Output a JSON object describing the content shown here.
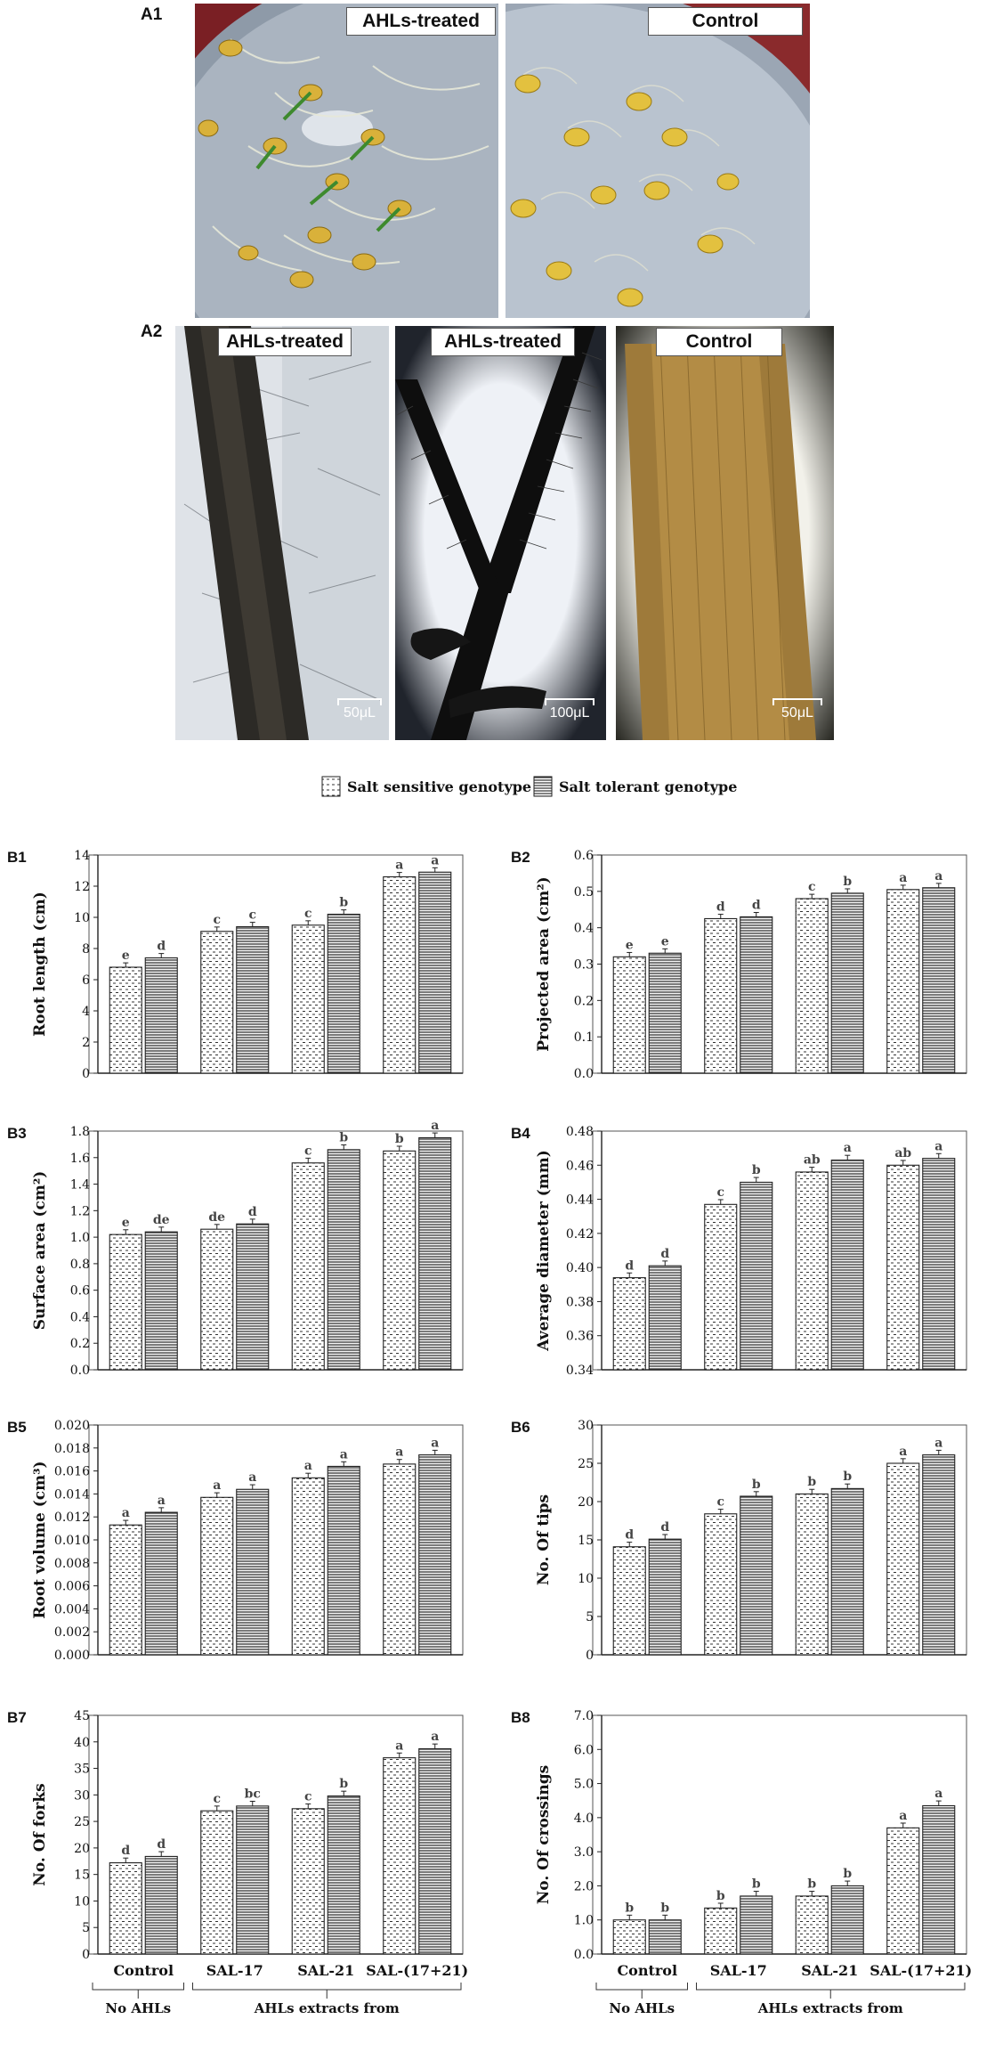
{
  "panelA": {
    "a1_label": "A1",
    "a2_label": "A2",
    "photo_a1_left_tag": "AHLs-treated",
    "photo_a1_right_tag": "Control",
    "photo_a2_left_tag": "AHLs-treated",
    "photo_a2_mid_tag": "AHLs-treated",
    "photo_a2_right_tag": "Control",
    "scale_left": "50μL",
    "scale_mid": "100μL",
    "scale_right": "50μL"
  },
  "legend": {
    "sensitive": "Salt sensitive genotype",
    "tolerant": "Salt tolerant genotype"
  },
  "xaxis": {
    "groups": [
      "Control",
      "SAL-17",
      "SAL-21",
      "SAL-(17+21)"
    ],
    "bracket_left": "No AHLs",
    "bracket_right": "AHLs extracts from"
  },
  "chart_data": [
    {
      "id": "B1",
      "type": "bar",
      "ylabel": "Root length (cm)",
      "ylim": [
        0,
        14
      ],
      "ticks": [
        "0",
        "2",
        "4",
        "6",
        "8",
        "10",
        "12",
        "14"
      ],
      "categories": [
        "Control",
        "SAL-17",
        "SAL-21",
        "SAL-(17+21)"
      ],
      "series": [
        {
          "name": "Salt sensitive genotype",
          "values": [
            6.8,
            9.1,
            9.5,
            12.6
          ],
          "letters": [
            "e",
            "c",
            "c",
            "a"
          ]
        },
        {
          "name": "Salt tolerant genotype",
          "values": [
            7.4,
            9.4,
            10.2,
            12.9
          ],
          "letters": [
            "d",
            "c",
            "b",
            "a"
          ]
        }
      ]
    },
    {
      "id": "B2",
      "type": "bar",
      "ylabel": "Projected area (cm²)",
      "ylim": [
        0,
        0.6
      ],
      "ticks": [
        "0.0",
        "0.1",
        "0.2",
        "0.3",
        "0.4",
        "0.5",
        "0.6"
      ],
      "categories": [
        "Control",
        "SAL-17",
        "SAL-21",
        "SAL-(17+21)"
      ],
      "series": [
        {
          "name": "Salt sensitive genotype",
          "values": [
            0.32,
            0.425,
            0.48,
            0.505
          ],
          "letters": [
            "e",
            "d",
            "c",
            "a"
          ]
        },
        {
          "name": "Salt tolerant genotype",
          "values": [
            0.33,
            0.43,
            0.495,
            0.51
          ],
          "letters": [
            "e",
            "d",
            "b",
            "a"
          ]
        }
      ]
    },
    {
      "id": "B3",
      "type": "bar",
      "ylabel": "Surface area (cm²)",
      "ylim": [
        0,
        1.8
      ],
      "ticks": [
        "0.0",
        "0.2",
        "0.4",
        "0.6",
        "0.8",
        "1.0",
        "1.2",
        "1.4",
        "1.6",
        "1.8"
      ],
      "categories": [
        "Control",
        "SAL-17",
        "SAL-21",
        "SAL-(17+21)"
      ],
      "series": [
        {
          "name": "Salt sensitive genotype",
          "values": [
            1.02,
            1.06,
            1.56,
            1.65
          ],
          "letters": [
            "e",
            "de",
            "c",
            "b"
          ]
        },
        {
          "name": "Salt tolerant genotype",
          "values": [
            1.04,
            1.1,
            1.66,
            1.75
          ],
          "letters": [
            "de",
            "d",
            "b",
            "a"
          ]
        }
      ]
    },
    {
      "id": "B4",
      "type": "bar",
      "ylabel": "Average diameter (mm)",
      "ylim": [
        0.34,
        0.48
      ],
      "ticks": [
        "0.34",
        "0.36",
        "0.38",
        "0.40",
        "0.42",
        "0.44",
        "0.46",
        "0.48"
      ],
      "categories": [
        "Control",
        "SAL-17",
        "SAL-21",
        "SAL-(17+21)"
      ],
      "series": [
        {
          "name": "Salt sensitive genotype",
          "values": [
            0.394,
            0.437,
            0.456,
            0.46
          ],
          "letters": [
            "d",
            "c",
            "ab",
            "ab"
          ]
        },
        {
          "name": "Salt tolerant genotype",
          "values": [
            0.401,
            0.45,
            0.463,
            0.464
          ],
          "letters": [
            "d",
            "b",
            "a",
            "a"
          ]
        }
      ]
    },
    {
      "id": "B5",
      "type": "bar",
      "ylabel": "Root volume (cm³)",
      "ylim": [
        0,
        0.02
      ],
      "ticks": [
        "0.000",
        "0.002",
        "0.004",
        "0.006",
        "0.008",
        "0.010",
        "0.012",
        "0.014",
        "0.016",
        "0.018",
        "0.020"
      ],
      "categories": [
        "Control",
        "SAL-17",
        "SAL-21",
        "SAL-(17+21)"
      ],
      "series": [
        {
          "name": "Salt sensitive genotype",
          "values": [
            0.0113,
            0.0137,
            0.0154,
            0.0166
          ],
          "letters": [
            "a",
            "a",
            "a",
            "a"
          ]
        },
        {
          "name": "Salt tolerant genotype",
          "values": [
            0.0124,
            0.0144,
            0.0164,
            0.0174
          ],
          "letters": [
            "a",
            "a",
            "a",
            "a"
          ]
        }
      ]
    },
    {
      "id": "B6",
      "type": "bar",
      "ylabel": "No. Of tips",
      "ylim": [
        0,
        30
      ],
      "ticks": [
        "0",
        "5",
        "10",
        "15",
        "20",
        "25",
        "30"
      ],
      "categories": [
        "Control",
        "SAL-17",
        "SAL-21",
        "SAL-(17+21)"
      ],
      "series": [
        {
          "name": "Salt sensitive genotype",
          "values": [
            14.1,
            18.4,
            21.0,
            25.0
          ],
          "letters": [
            "d",
            "c",
            "b",
            "a"
          ]
        },
        {
          "name": "Salt tolerant genotype",
          "values": [
            15.1,
            20.7,
            21.7,
            26.1
          ],
          "letters": [
            "d",
            "b",
            "b",
            "a"
          ]
        }
      ]
    },
    {
      "id": "B7",
      "type": "bar",
      "ylabel": "No. Of forks",
      "ylim": [
        0,
        45
      ],
      "ticks": [
        "0",
        "5",
        "10",
        "15",
        "20",
        "25",
        "30",
        "35",
        "40",
        "45"
      ],
      "categories": [
        "Control",
        "SAL-17",
        "SAL-21",
        "SAL-(17+21)"
      ],
      "series": [
        {
          "name": "Salt sensitive genotype",
          "values": [
            17.2,
            27.0,
            27.4,
            37.0
          ],
          "letters": [
            "d",
            "c",
            "c",
            "a"
          ]
        },
        {
          "name": "Salt tolerant genotype",
          "values": [
            18.4,
            27.9,
            29.8,
            38.7
          ],
          "letters": [
            "d",
            "bc",
            "b",
            "a"
          ]
        }
      ]
    },
    {
      "id": "B8",
      "type": "bar",
      "ylabel": "No. Of crossings",
      "ylim": [
        0,
        7
      ],
      "ticks": [
        "0.0",
        "1.0",
        "2.0",
        "3.0",
        "4.0",
        "5.0",
        "6.0",
        "7.0"
      ],
      "categories": [
        "Control",
        "SAL-17",
        "SAL-21",
        "SAL-(17+21)"
      ],
      "series": [
        {
          "name": "Salt sensitive genotype",
          "values": [
            1.0,
            1.35,
            1.7,
            3.7
          ],
          "letters": [
            "b",
            "b",
            "b",
            "a"
          ]
        },
        {
          "name": "Salt tolerant genotype",
          "values": [
            1.0,
            1.7,
            2.0,
            4.35
          ],
          "letters": [
            "b",
            "b",
            "b",
            "a"
          ]
        }
      ]
    }
  ]
}
